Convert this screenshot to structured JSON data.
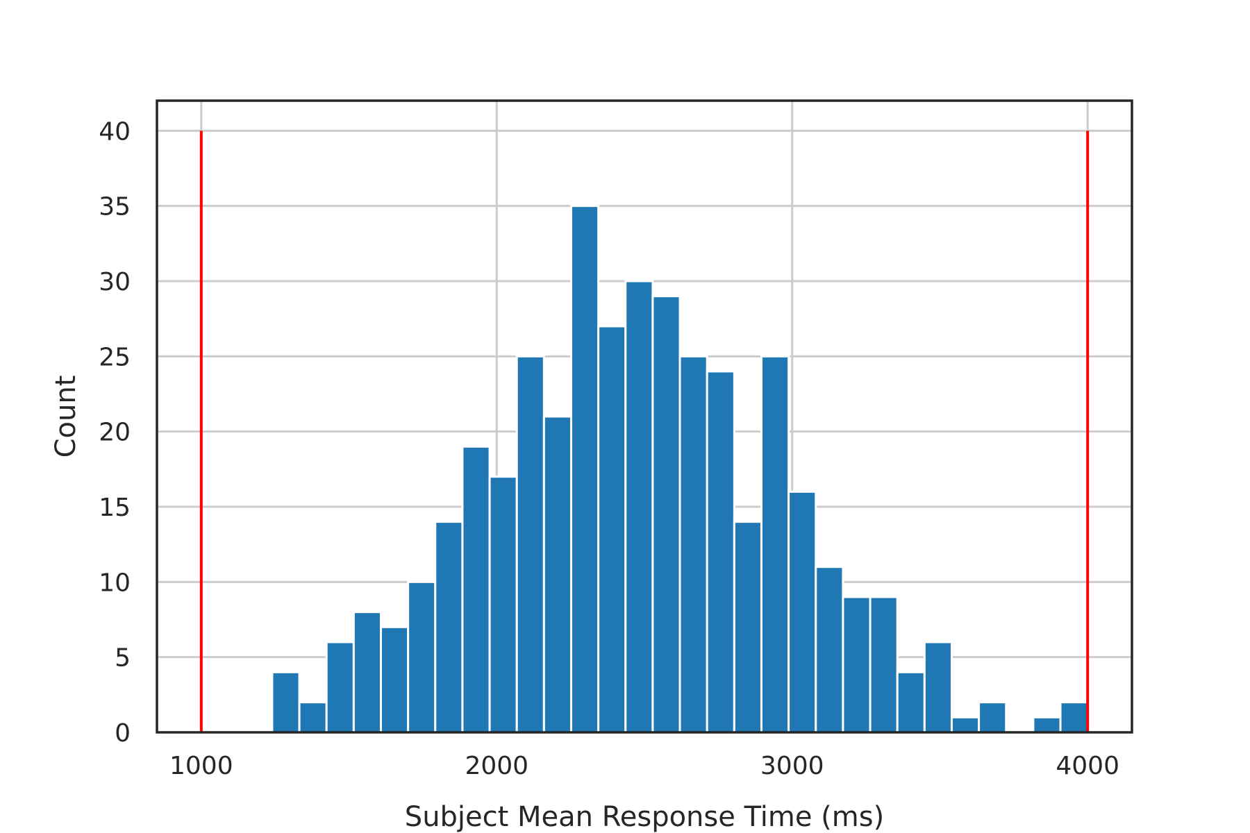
{
  "chart_data": {
    "type": "bar",
    "title": "",
    "xlabel": "Subject Mean Response Time (ms)",
    "ylabel": "Count",
    "xlim": [
      850,
      4150
    ],
    "ylim": [
      0,
      42
    ],
    "xticks": [
      1000,
      2000,
      3000,
      4000
    ],
    "xtick_labels": [
      "1000",
      "2000",
      "3000",
      "4000"
    ],
    "yticks": [
      0,
      5,
      10,
      15,
      20,
      25,
      30,
      35,
      40
    ],
    "ytick_labels": [
      "0",
      "5",
      "10",
      "15",
      "20",
      "25",
      "30",
      "35",
      "40"
    ],
    "grid": true,
    "bin_width": 92,
    "bins": [
      {
        "start": 1240,
        "count": 4
      },
      {
        "start": 1332,
        "count": 2
      },
      {
        "start": 1424,
        "count": 6
      },
      {
        "start": 1516,
        "count": 8
      },
      {
        "start": 1608,
        "count": 7
      },
      {
        "start": 1700,
        "count": 10
      },
      {
        "start": 1792,
        "count": 14
      },
      {
        "start": 1884,
        "count": 19
      },
      {
        "start": 1976,
        "count": 17
      },
      {
        "start": 2068,
        "count": 25
      },
      {
        "start": 2160,
        "count": 21
      },
      {
        "start": 2252,
        "count": 35
      },
      {
        "start": 2344,
        "count": 27
      },
      {
        "start": 2436,
        "count": 30
      },
      {
        "start": 2528,
        "count": 29
      },
      {
        "start": 2620,
        "count": 25
      },
      {
        "start": 2712,
        "count": 24
      },
      {
        "start": 2804,
        "count": 14
      },
      {
        "start": 2896,
        "count": 25
      },
      {
        "start": 2988,
        "count": 16
      },
      {
        "start": 3080,
        "count": 11
      },
      {
        "start": 3172,
        "count": 9
      },
      {
        "start": 3264,
        "count": 9
      },
      {
        "start": 3356,
        "count": 4
      },
      {
        "start": 3448,
        "count": 6
      },
      {
        "start": 3540,
        "count": 1
      },
      {
        "start": 3632,
        "count": 2
      },
      {
        "start": 3724,
        "count": 0
      },
      {
        "start": 3816,
        "count": 1
      },
      {
        "start": 3908,
        "count": 2
      }
    ],
    "reference_lines": [
      {
        "x": 1000,
        "y_top": 40,
        "color": "#ff0000"
      },
      {
        "x": 4000,
        "y_top": 40,
        "color": "#ff0000"
      }
    ],
    "colors": {
      "bar": "#1f77b4",
      "bar_edge": "#ffffff",
      "grid": "#cccccc",
      "axes": "#262626",
      "text": "#262626"
    }
  }
}
